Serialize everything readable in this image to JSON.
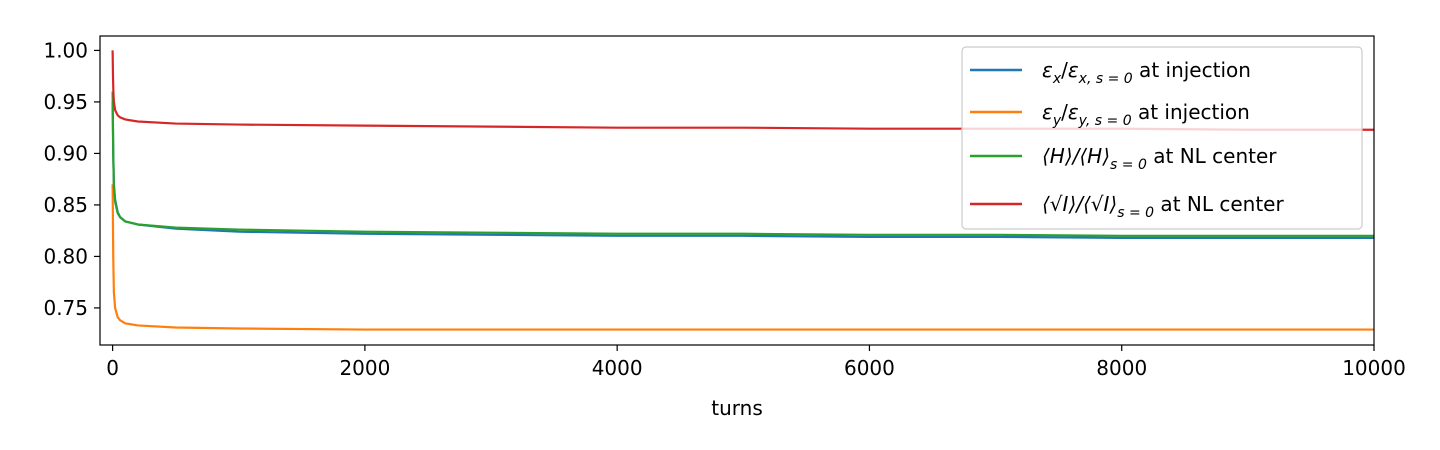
{
  "chart_data": {
    "type": "line",
    "title": "",
    "xlabel": "turns",
    "ylabel": "",
    "xlim": [
      -100,
      10000
    ],
    "ylim": [
      0.714,
      1.014
    ],
    "x_ticks": [
      0,
      2000,
      4000,
      6000,
      8000,
      10000
    ],
    "x_tick_labels": [
      "0",
      "2000",
      "4000",
      "6000",
      "8000",
      "10000"
    ],
    "y_ticks": [
      0.75,
      0.8,
      0.85,
      0.9,
      0.95,
      1.0
    ],
    "y_tick_labels": [
      "0.75",
      "0.80",
      "0.85",
      "0.90",
      "0.95",
      "1.00"
    ],
    "grid": false,
    "legend_position": "top-right",
    "series": [
      {
        "name": "εx/εx,s=0 at injection",
        "color": "#1f77b4",
        "x": [
          0,
          5,
          10,
          20,
          40,
          60,
          100,
          200,
          500,
          1000,
          2000,
          3000,
          4000,
          5000,
          6000,
          7000,
          8000,
          9000,
          10000
        ],
        "y": [
          0.95,
          0.9,
          0.87,
          0.855,
          0.843,
          0.838,
          0.834,
          0.831,
          0.827,
          0.824,
          0.822,
          0.821,
          0.82,
          0.82,
          0.819,
          0.819,
          0.818,
          0.818,
          0.818
        ]
      },
      {
        "name": "εy/εy,s=0 at injection",
        "color": "#ff7f0e",
        "x": [
          0,
          5,
          10,
          20,
          40,
          60,
          100,
          200,
          500,
          1000,
          2000,
          3000,
          4000,
          5000,
          6000,
          7000,
          8000,
          9000,
          10000
        ],
        "y": [
          0.87,
          0.8,
          0.765,
          0.75,
          0.741,
          0.738,
          0.735,
          0.733,
          0.731,
          0.73,
          0.729,
          0.729,
          0.729,
          0.729,
          0.729,
          0.729,
          0.729,
          0.729,
          0.729
        ]
      },
      {
        "name": "⟨H⟩/⟨H⟩s=0 at NL center",
        "color": "#2ca02c",
        "x": [
          0,
          5,
          10,
          20,
          40,
          60,
          100,
          200,
          500,
          1000,
          2000,
          3000,
          4000,
          5000,
          6000,
          7000,
          8000,
          9000,
          10000
        ],
        "y": [
          0.96,
          0.9,
          0.868,
          0.853,
          0.842,
          0.838,
          0.834,
          0.831,
          0.828,
          0.826,
          0.824,
          0.823,
          0.822,
          0.822,
          0.821,
          0.821,
          0.82,
          0.82,
          0.82
        ]
      },
      {
        "name": "⟨√I⟩/⟨√I⟩s=0 at NL center",
        "color": "#d62728",
        "x": [
          0,
          3,
          6,
          10,
          20,
          40,
          60,
          100,
          200,
          500,
          1000,
          2000,
          3000,
          4000,
          5000,
          6000,
          7000,
          8000,
          9000,
          10000
        ],
        "y": [
          1.0,
          0.975,
          0.96,
          0.95,
          0.942,
          0.937,
          0.935,
          0.933,
          0.931,
          0.929,
          0.928,
          0.927,
          0.926,
          0.925,
          0.925,
          0.924,
          0.924,
          0.924,
          0.923,
          0.923
        ]
      }
    ],
    "legend": [
      {
        "color": "#1f77b4",
        "var": "ε",
        "sub1": "x",
        "var2": "ε",
        "sub2": "x, s = 0",
        "rest": "at injection"
      },
      {
        "color": "#ff7f0e",
        "var": "ε",
        "sub1": "y",
        "var2": "ε",
        "sub2": "y, s = 0",
        "rest": "at injection"
      },
      {
        "color": "#2ca02c",
        "pre": "⟨H⟩/⟨H⟩",
        "sub2": "s = 0",
        "rest": "at NL center"
      },
      {
        "color": "#d62728",
        "pre": "⟨√I⟩/⟨√I⟩",
        "sub2": "s = 0",
        "rest": "at NL center"
      }
    ]
  }
}
